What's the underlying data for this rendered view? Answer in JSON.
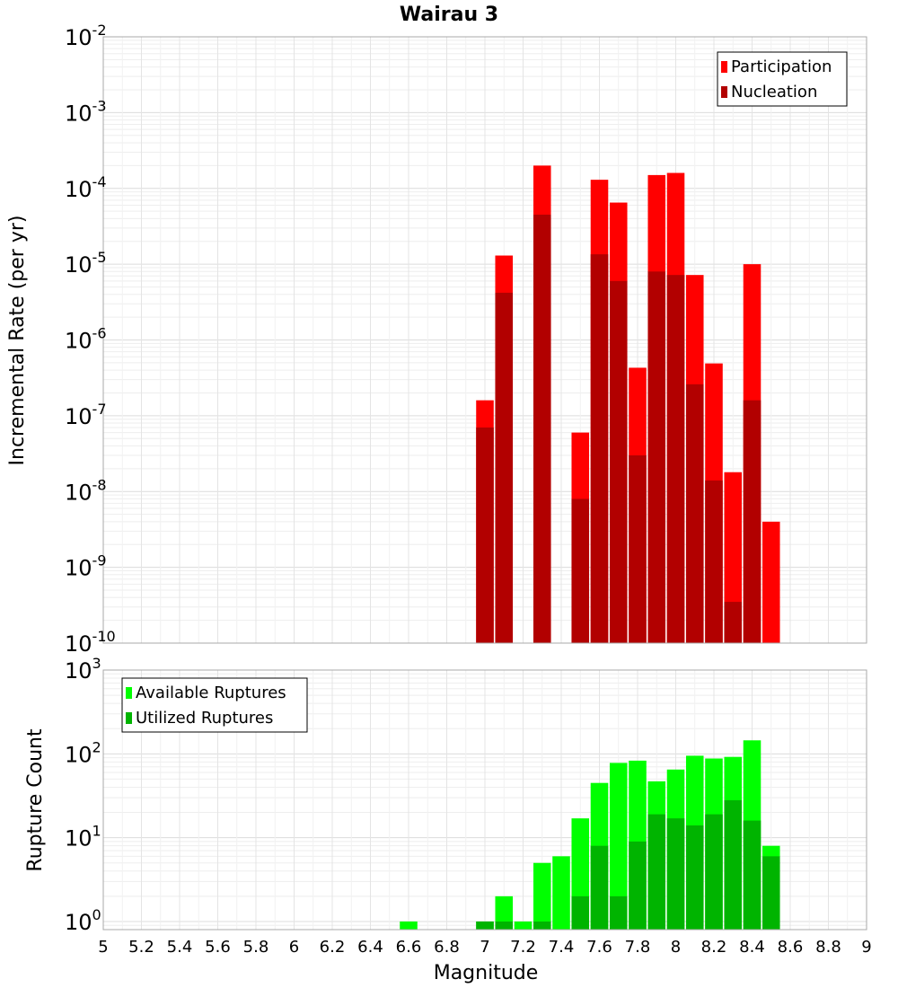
{
  "chart_data": [
    {
      "type": "bar",
      "title": "Wairau 3",
      "ylabel": "Incremental Rate (per yr)",
      "yscale": "log",
      "ylim": [
        1e-10,
        0.01
      ],
      "xlim": [
        5,
        9
      ],
      "grid": true,
      "legend_position": "top-right",
      "x": [
        7.0,
        7.1,
        7.3,
        7.5,
        7.6,
        7.7,
        7.8,
        7.9,
        8.0,
        8.1,
        8.2,
        8.3,
        8.4,
        8.5
      ],
      "series": [
        {
          "name": "Participation",
          "color": "#ff0000",
          "values": [
            1.6e-07,
            1.3e-05,
            0.0002,
            6e-08,
            0.00013,
            6.5e-05,
            4.3e-07,
            0.00015,
            0.00016,
            7.2e-06,
            4.9e-07,
            1.8e-08,
            1e-05,
            4e-09
          ]
        },
        {
          "name": "Nucleation",
          "color": "#b20000",
          "values": [
            7e-08,
            4.2e-06,
            4.5e-05,
            8e-09,
            1.35e-05,
            6e-06,
            3e-08,
            8e-06,
            7.2e-06,
            2.6e-07,
            1.4e-08,
            3.5e-10,
            1.6e-07,
            null
          ]
        }
      ]
    },
    {
      "type": "bar",
      "ylabel": "Rupture Count",
      "xlabel": "Magnitude",
      "yscale": "log",
      "ylim": [
        0.8,
        1000
      ],
      "xlim": [
        5,
        9
      ],
      "xticks": [
        5,
        5.2,
        5.4,
        5.6,
        5.8,
        6,
        6.2,
        6.4,
        6.6,
        6.8,
        7,
        7.2,
        7.4,
        7.6,
        7.8,
        8,
        8.2,
        8.4,
        8.6,
        8.8,
        9
      ],
      "grid": true,
      "legend_position": "top-left",
      "x": [
        6.6,
        7.0,
        7.1,
        7.2,
        7.3,
        7.4,
        7.5,
        7.6,
        7.7,
        7.8,
        7.9,
        8.0,
        8.1,
        8.2,
        8.3,
        8.4,
        8.5
      ],
      "series": [
        {
          "name": "Available Ruptures",
          "color": "#00ff00",
          "values": [
            1,
            1,
            2,
            1,
            5,
            6,
            17,
            45,
            78,
            83,
            47,
            65,
            95,
            88,
            92,
            145,
            8
          ]
        },
        {
          "name": "Utilized Ruptures",
          "color": "#00b400",
          "values": [
            null,
            1,
            1,
            null,
            1,
            null,
            2,
            8,
            2,
            9,
            19,
            17,
            14,
            19,
            28,
            16,
            6
          ]
        }
      ]
    }
  ]
}
